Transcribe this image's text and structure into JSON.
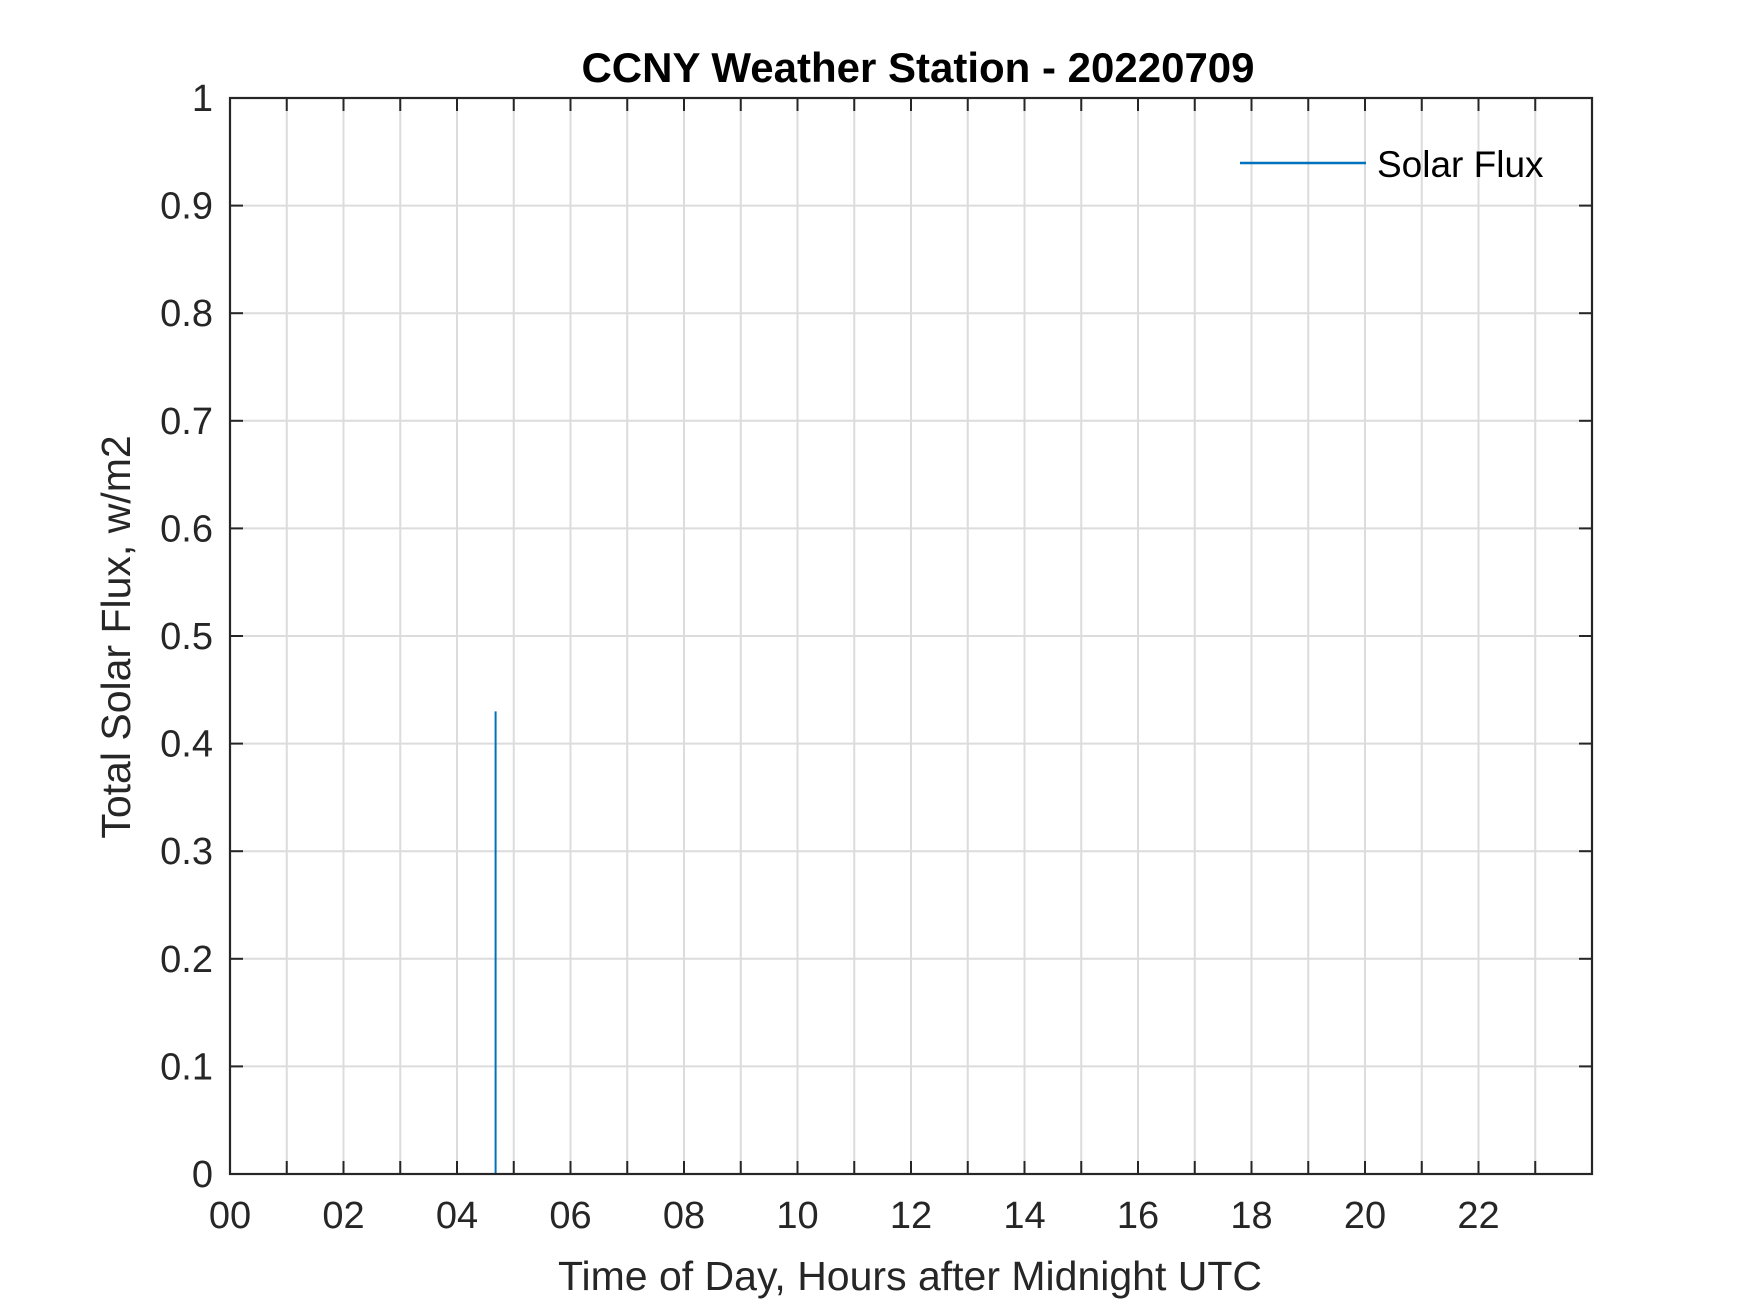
{
  "chart_data": {
    "type": "line",
    "title": "CCNY Weather Station - 20220709",
    "xlabel": "Time of Day, Hours after Midnight UTC",
    "ylabel": "Total Solar Flux, w/m2",
    "xlim": [
      0,
      24
    ],
    "ylim": [
      0,
      1
    ],
    "x_ticks": [
      0,
      2,
      4,
      6,
      8,
      10,
      12,
      14,
      16,
      18,
      20,
      22
    ],
    "x_tick_labels": [
      "00",
      "02",
      "04",
      "06",
      "08",
      "10",
      "12",
      "14",
      "16",
      "18",
      "20",
      "22"
    ],
    "x_minor_step": 1,
    "y_ticks": [
      0,
      0.1,
      0.2,
      0.3,
      0.4,
      0.5,
      0.6,
      0.7,
      0.8,
      0.9,
      1
    ],
    "y_tick_labels": [
      "0",
      "0.1",
      "0.2",
      "0.3",
      "0.4",
      "0.5",
      "0.6",
      "0.7",
      "0.8",
      "0.9",
      "1"
    ],
    "grid": true,
    "legend_position": "top-right",
    "series": [
      {
        "name": "Solar Flux",
        "color": "#0072BD",
        "x": [
          4.68,
          4.68
        ],
        "y": [
          0,
          0.43
        ]
      }
    ]
  }
}
